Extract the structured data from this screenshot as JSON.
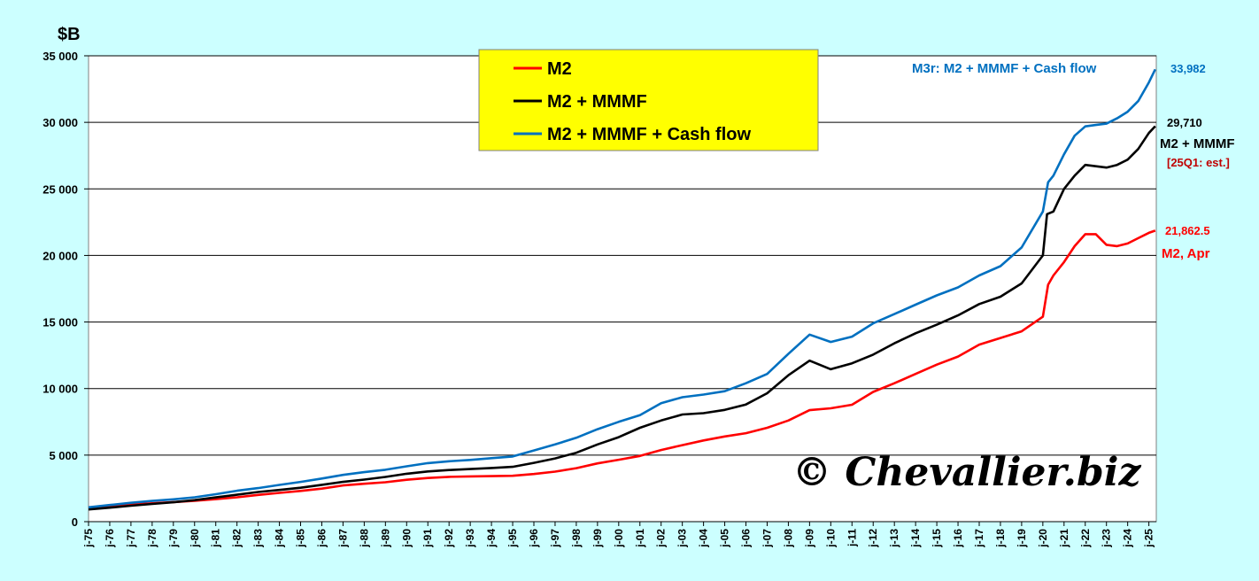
{
  "chart_data": {
    "type": "line",
    "unit_label": "$B",
    "ylim": [
      0,
      35000
    ],
    "yticks": [
      0,
      5000,
      10000,
      15000,
      20000,
      25000,
      30000,
      35000
    ],
    "ytick_labels": [
      "0",
      "5 000",
      "10 000",
      "15 000",
      "20 000",
      "25 000",
      "30 000",
      "35 000"
    ],
    "xlim": [
      1975,
      2025.35
    ],
    "xticks": [
      {
        "year": 1975,
        "label": "j-75"
      },
      {
        "year": 1976,
        "label": "j-76"
      },
      {
        "year": 1977,
        "label": "j-77"
      },
      {
        "year": 1978,
        "label": "j-78"
      },
      {
        "year": 1979,
        "label": "j-79"
      },
      {
        "year": 1980,
        "label": "j-80"
      },
      {
        "year": 1981,
        "label": "j-81"
      },
      {
        "year": 1982,
        "label": "j-82"
      },
      {
        "year": 1983,
        "label": "j-83"
      },
      {
        "year": 1984,
        "label": "j-84"
      },
      {
        "year": 1985,
        "label": "j-85"
      },
      {
        "year": 1986,
        "label": "j-86"
      },
      {
        "year": 1987,
        "label": "j-87"
      },
      {
        "year": 1988,
        "label": "j-88"
      },
      {
        "year": 1989,
        "label": "j-89"
      },
      {
        "year": 1990,
        "label": "j-90"
      },
      {
        "year": 1991,
        "label": "j-91"
      },
      {
        "year": 1992,
        "label": "j-92"
      },
      {
        "year": 1993,
        "label": "j-93"
      },
      {
        "year": 1994,
        "label": "j-94"
      },
      {
        "year": 1995,
        "label": "j-95"
      },
      {
        "year": 1996,
        "label": "j-96"
      },
      {
        "year": 1997,
        "label": "j-97"
      },
      {
        "year": 1998,
        "label": "j-98"
      },
      {
        "year": 1999,
        "label": "j-99"
      },
      {
        "year": 2000,
        "label": "j-00"
      },
      {
        "year": 2001,
        "label": "j-01"
      },
      {
        "year": 2002,
        "label": "j-02"
      },
      {
        "year": 2003,
        "label": "j-03"
      },
      {
        "year": 2004,
        "label": "j-04"
      },
      {
        "year": 2005,
        "label": "j-05"
      },
      {
        "year": 2006,
        "label": "j-06"
      },
      {
        "year": 2007,
        "label": "j-07"
      },
      {
        "year": 2008,
        "label": "j-08"
      },
      {
        "year": 2009,
        "label": "j-09"
      },
      {
        "year": 2010,
        "label": "j-10"
      },
      {
        "year": 2011,
        "label": "j-11"
      },
      {
        "year": 2012,
        "label": "j-12"
      },
      {
        "year": 2013,
        "label": "j-13"
      },
      {
        "year": 2014,
        "label": "j-14"
      },
      {
        "year": 2015,
        "label": "j-15"
      },
      {
        "year": 2016,
        "label": "j-16"
      },
      {
        "year": 2017,
        "label": "j-17"
      },
      {
        "year": 2018,
        "label": "j-18"
      },
      {
        "year": 2019,
        "label": "j-19"
      },
      {
        "year": 2020,
        "label": "j-20"
      },
      {
        "year": 2021,
        "label": "j-21"
      },
      {
        "year": 2022,
        "label": "j-22"
      },
      {
        "year": 2023,
        "label": "j-23"
      },
      {
        "year": 2024,
        "label": "j-24"
      },
      {
        "year": 2025,
        "label": "j-25"
      }
    ],
    "grid": "horizontal",
    "legend": {
      "placement": "top-center",
      "background": "#ffff00",
      "entries": [
        "M2",
        "M2 + MMMF",
        "M2 + MMMF + Cash flow"
      ]
    },
    "series": [
      {
        "name": "M2",
        "color": "#ff0000",
        "points": [
          [
            1975,
            1020
          ],
          [
            1976,
            1150
          ],
          [
            1977,
            1290
          ],
          [
            1978,
            1380
          ],
          [
            1979,
            1470
          ],
          [
            1980,
            1570
          ],
          [
            1981,
            1690
          ],
          [
            1982,
            1830
          ],
          [
            1983,
            2010
          ],
          [
            1984,
            2160
          ],
          [
            1985,
            2310
          ],
          [
            1986,
            2480
          ],
          [
            1987,
            2720
          ],
          [
            1988,
            2850
          ],
          [
            1989,
            2960
          ],
          [
            1990,
            3150
          ],
          [
            1991,
            3280
          ],
          [
            1992,
            3370
          ],
          [
            1993,
            3400
          ],
          [
            1994,
            3420
          ],
          [
            1995,
            3450
          ],
          [
            1996,
            3580
          ],
          [
            1997,
            3760
          ],
          [
            1998,
            4020
          ],
          [
            1999,
            4380
          ],
          [
            2000,
            4650
          ],
          [
            2001,
            4940
          ],
          [
            2002,
            5380
          ],
          [
            2003,
            5750
          ],
          [
            2004,
            6100
          ],
          [
            2005,
            6400
          ],
          [
            2006,
            6650
          ],
          [
            2007,
            7050
          ],
          [
            2008,
            7600
          ],
          [
            2009,
            8380
          ],
          [
            2010,
            8520
          ],
          [
            2011,
            8780
          ],
          [
            2012,
            9750
          ],
          [
            2013,
            10400
          ],
          [
            2014,
            11100
          ],
          [
            2015,
            11800
          ],
          [
            2016,
            12400
          ],
          [
            2017,
            13300
          ],
          [
            2018,
            13800
          ],
          [
            2019,
            14300
          ],
          [
            2020,
            15400
          ],
          [
            2020.25,
            17800
          ],
          [
            2020.5,
            18500
          ],
          [
            2021,
            19500
          ],
          [
            2021.5,
            20700
          ],
          [
            2022,
            21600
          ],
          [
            2022.5,
            21600
          ],
          [
            2023,
            20800
          ],
          [
            2023.5,
            20700
          ],
          [
            2024,
            20900
          ],
          [
            2024.5,
            21300
          ],
          [
            2025,
            21700
          ],
          [
            2025.3,
            21862.5
          ]
        ]
      },
      {
        "name": "M2 + MMMF",
        "color": "#000000",
        "points": [
          [
            1975,
            920
          ],
          [
            1976,
            1050
          ],
          [
            1977,
            1200
          ],
          [
            1978,
            1330
          ],
          [
            1979,
            1460
          ],
          [
            1980,
            1620
          ],
          [
            1981,
            1820
          ],
          [
            1982,
            2020
          ],
          [
            1983,
            2230
          ],
          [
            1984,
            2380
          ],
          [
            1985,
            2550
          ],
          [
            1986,
            2770
          ],
          [
            1987,
            2990
          ],
          [
            1988,
            3160
          ],
          [
            1989,
            3360
          ],
          [
            1990,
            3600
          ],
          [
            1991,
            3770
          ],
          [
            1992,
            3880
          ],
          [
            1993,
            3950
          ],
          [
            1994,
            4030
          ],
          [
            1995,
            4120
          ],
          [
            1996,
            4420
          ],
          [
            1997,
            4750
          ],
          [
            1998,
            5180
          ],
          [
            1999,
            5800
          ],
          [
            2000,
            6350
          ],
          [
            2001,
            7050
          ],
          [
            2002,
            7600
          ],
          [
            2003,
            8050
          ],
          [
            2004,
            8150
          ],
          [
            2005,
            8400
          ],
          [
            2006,
            8800
          ],
          [
            2007,
            9650
          ],
          [
            2008,
            11000
          ],
          [
            2009,
            12100
          ],
          [
            2010,
            11450
          ],
          [
            2011,
            11900
          ],
          [
            2012,
            12550
          ],
          [
            2013,
            13400
          ],
          [
            2014,
            14150
          ],
          [
            2015,
            14800
          ],
          [
            2016,
            15500
          ],
          [
            2017,
            16350
          ],
          [
            2018,
            16900
          ],
          [
            2019,
            17900
          ],
          [
            2020,
            20000
          ],
          [
            2020.2,
            23100
          ],
          [
            2020.5,
            23300
          ],
          [
            2021,
            25000
          ],
          [
            2021.5,
            26000
          ],
          [
            2022,
            26800
          ],
          [
            2022.5,
            26700
          ],
          [
            2023,
            26600
          ],
          [
            2023.5,
            26800
          ],
          [
            2024,
            27200
          ],
          [
            2024.5,
            28000
          ],
          [
            2025,
            29200
          ],
          [
            2025.3,
            29710
          ]
        ]
      },
      {
        "name": "M2 + MMMF + Cash flow",
        "color": "#0070c0",
        "points": [
          [
            1975,
            1080
          ],
          [
            1976,
            1250
          ],
          [
            1977,
            1420
          ],
          [
            1978,
            1560
          ],
          [
            1979,
            1680
          ],
          [
            1980,
            1830
          ],
          [
            1981,
            2060
          ],
          [
            1982,
            2320
          ],
          [
            1983,
            2520
          ],
          [
            1984,
            2760
          ],
          [
            1985,
            2990
          ],
          [
            1986,
            3240
          ],
          [
            1987,
            3510
          ],
          [
            1988,
            3720
          ],
          [
            1989,
            3900
          ],
          [
            1990,
            4160
          ],
          [
            1991,
            4400
          ],
          [
            1992,
            4540
          ],
          [
            1993,
            4640
          ],
          [
            1994,
            4770
          ],
          [
            1995,
            4900
          ],
          [
            1996,
            5350
          ],
          [
            1997,
            5800
          ],
          [
            1998,
            6300
          ],
          [
            1999,
            6950
          ],
          [
            2000,
            7500
          ],
          [
            2001,
            8000
          ],
          [
            2002,
            8900
          ],
          [
            2003,
            9350
          ],
          [
            2004,
            9550
          ],
          [
            2005,
            9800
          ],
          [
            2006,
            10400
          ],
          [
            2007,
            11100
          ],
          [
            2008,
            12600
          ],
          [
            2009,
            14050
          ],
          [
            2010,
            13500
          ],
          [
            2011,
            13900
          ],
          [
            2012,
            14900
          ],
          [
            2013,
            15600
          ],
          [
            2014,
            16300
          ],
          [
            2015,
            17000
          ],
          [
            2016,
            17600
          ],
          [
            2017,
            18500
          ],
          [
            2018,
            19200
          ],
          [
            2019,
            20600
          ],
          [
            2020,
            23300
          ],
          [
            2020.25,
            25500
          ],
          [
            2020.5,
            26000
          ],
          [
            2021,
            27600
          ],
          [
            2021.5,
            29000
          ],
          [
            2022,
            29700
          ],
          [
            2022.5,
            29800
          ],
          [
            2023,
            29900
          ],
          [
            2023.5,
            30300
          ],
          [
            2024,
            30800
          ],
          [
            2024.5,
            31600
          ],
          [
            2025,
            33000
          ],
          [
            2025.3,
            33982
          ]
        ]
      }
    ],
    "annotations": {
      "m3r_title": "M3r: M2 + MMMF + Cash flow",
      "blue_value": "33,982",
      "black_value": "29,710",
      "black_label": "M2 + MMMF",
      "black_note": "[25Q1: est.]",
      "red_value": "21,862.5",
      "red_label": "M2, Apr"
    },
    "watermark": "© Chevallier.biz"
  }
}
